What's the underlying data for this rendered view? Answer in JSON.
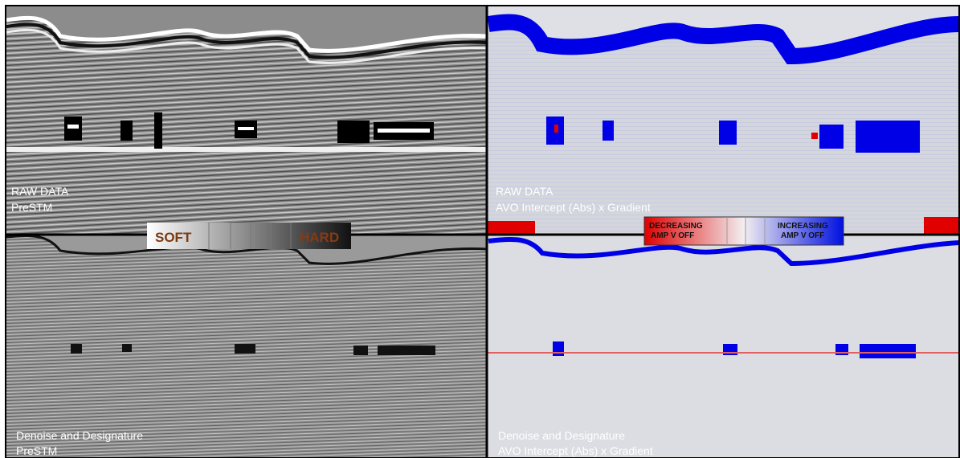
{
  "panels": [
    {
      "title": "RAW DATA",
      "subtitle": "PreSTM"
    },
    {
      "title": "RAW DATA",
      "subtitle": "AVO Intercept (Abs) x Gradient"
    },
    {
      "title": "Denoise and Designature",
      "subtitle": "PreSTM"
    },
    {
      "title": "Denoise and Designature",
      "subtitle": "AVO Intercept (Abs) x Gradient"
    }
  ],
  "grey_scale": {
    "soft": "SOFT",
    "hard": "HARD"
  },
  "avo_scale": {
    "decreasing": [
      "DECREASING",
      "AMP V OFF"
    ],
    "increasing": [
      "INCREASING",
      "AMP V OFF"
    ]
  }
}
